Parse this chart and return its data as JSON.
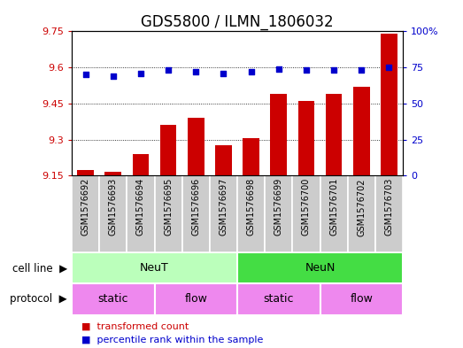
{
  "title": "GDS5800 / ILMN_1806032",
  "samples": [
    "GSM1576692",
    "GSM1576693",
    "GSM1576694",
    "GSM1576695",
    "GSM1576696",
    "GSM1576697",
    "GSM1576698",
    "GSM1576699",
    "GSM1576700",
    "GSM1576701",
    "GSM1576702",
    "GSM1576703"
  ],
  "transformed_count": [
    9.175,
    9.165,
    9.24,
    9.36,
    9.39,
    9.275,
    9.305,
    9.49,
    9.46,
    9.49,
    9.52,
    9.74
  ],
  "percentile_rank": [
    70,
    69,
    71,
    73,
    72,
    71,
    72,
    74,
    73,
    73,
    73,
    75
  ],
  "ylim_left": [
    9.15,
    9.75
  ],
  "ylim_right": [
    0,
    100
  ],
  "yticks_left": [
    9.15,
    9.3,
    9.45,
    9.6,
    9.75
  ],
  "yticks_right": [
    0,
    25,
    50,
    75,
    100
  ],
  "ytick_labels_left": [
    "9.15",
    "9.3",
    "9.45",
    "9.6",
    "9.75"
  ],
  "ytick_labels_right": [
    "0",
    "25",
    "50",
    "75",
    "100%"
  ],
  "bar_color": "#cc0000",
  "dot_color": "#0000cc",
  "grid_color": "#000000",
  "bar_bottom": 9.15,
  "cell_line_labels": [
    "NeuT",
    "NeuN"
  ],
  "cell_line_ranges": [
    [
      0,
      5
    ],
    [
      6,
      11
    ]
  ],
  "cell_line_colors": [
    "#bbffbb",
    "#44dd44"
  ],
  "protocol_labels": [
    "static",
    "flow",
    "static",
    "flow"
  ],
  "protocol_ranges": [
    [
      0,
      2
    ],
    [
      3,
      5
    ],
    [
      6,
      8
    ],
    [
      9,
      11
    ]
  ],
  "protocol_colors": [
    "#ee88ee",
    "#ee88ee",
    "#ee88ee",
    "#ee88ee"
  ],
  "legend_items": [
    "transformed count",
    "percentile rank within the sample"
  ],
  "legend_colors": [
    "#cc0000",
    "#0000cc"
  ],
  "row_label_cell_line": "cell line",
  "row_label_protocol": "protocol",
  "sample_bg_color": "#cccccc",
  "sample_border_color": "#ffffff",
  "title_fontsize": 12,
  "tick_fontsize": 8,
  "sample_fontsize": 7,
  "annotation_fontsize": 9,
  "legend_fontsize": 8
}
